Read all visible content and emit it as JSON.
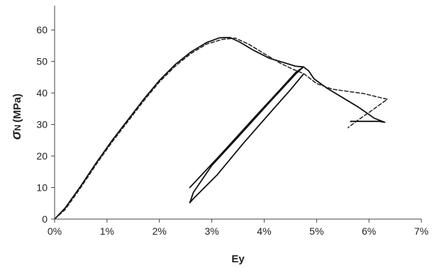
{
  "chart_data": {
    "type": "line",
    "xlabel": "Ey",
    "ylabel": {
      "symbol": "σ",
      "subscript": "N",
      "unit": "(MPa)"
    },
    "xlim": [
      0,
      7
    ],
    "ylim": [
      0,
      65
    ],
    "x_ticks": [
      0,
      1,
      2,
      3,
      4,
      5,
      6,
      7
    ],
    "x_tick_labels": [
      "0%",
      "1%",
      "2%",
      "3%",
      "4%",
      "5%",
      "6%",
      "7%"
    ],
    "y_ticks": [
      0,
      10,
      20,
      30,
      40,
      50,
      60
    ],
    "y_tick_labels": [
      "0",
      "10",
      "20",
      "30",
      "40",
      "50",
      "60"
    ],
    "grid": false,
    "legend": false,
    "series": [
      {
        "style": "solid",
        "color": "#111111",
        "points": [
          [
            0,
            0
          ],
          [
            0.2,
            3.5
          ],
          [
            0.5,
            10.5
          ],
          [
            0.8,
            18
          ],
          [
            1.1,
            25
          ],
          [
            1.4,
            31.5
          ],
          [
            1.7,
            38
          ],
          [
            2.0,
            44
          ],
          [
            2.3,
            49
          ],
          [
            2.6,
            53
          ],
          [
            2.9,
            56
          ],
          [
            3.15,
            57.5
          ],
          [
            3.35,
            57.6
          ],
          [
            3.55,
            56
          ],
          [
            3.8,
            53.5
          ],
          [
            4.1,
            51
          ],
          [
            4.4,
            49.5
          ],
          [
            4.6,
            48.5
          ],
          [
            4.75,
            48.3
          ],
          [
            4.85,
            47
          ],
          [
            4.95,
            44.5
          ],
          [
            5.2,
            41.5
          ],
          [
            5.5,
            38.5
          ],
          [
            5.8,
            35.5
          ],
          [
            6.1,
            32
          ],
          [
            6.3,
            30.7
          ],
          [
            6.2,
            31
          ],
          [
            5.65,
            31
          ],
          [
            5.65,
            30.9
          ]
        ]
      },
      {
        "style": "solid",
        "color": "#111111",
        "points": [
          [
            2.58,
            10
          ],
          [
            3.2,
            21
          ],
          [
            3.8,
            32
          ],
          [
            4.3,
            41
          ],
          [
            4.6,
            46.5
          ],
          [
            4.75,
            48.3
          ],
          [
            4.6,
            46
          ],
          [
            4.1,
            37
          ],
          [
            3.5,
            26
          ],
          [
            3.0,
            17
          ],
          [
            2.65,
            8.5
          ],
          [
            2.58,
            5.2
          ],
          [
            2.65,
            6.5
          ],
          [
            3.1,
            14
          ],
          [
            3.6,
            24
          ],
          [
            4.1,
            33.5
          ],
          [
            4.5,
            41
          ],
          [
            4.75,
            46
          ]
        ]
      },
      {
        "style": "dashed",
        "color": "#222222",
        "points": [
          [
            0,
            0
          ],
          [
            0.2,
            3
          ],
          [
            0.5,
            10
          ],
          [
            0.8,
            17.5
          ],
          [
            1.1,
            24.5
          ],
          [
            1.4,
            31
          ],
          [
            1.7,
            37.5
          ],
          [
            2.0,
            43.5
          ],
          [
            2.3,
            48.5
          ],
          [
            2.6,
            52.5
          ],
          [
            2.9,
            55.5
          ],
          [
            3.2,
            57
          ],
          [
            3.45,
            57.4
          ],
          [
            3.7,
            55.5
          ],
          [
            4.0,
            52.5
          ],
          [
            4.3,
            49.5
          ],
          [
            4.55,
            47.5
          ],
          [
            4.75,
            46.2
          ],
          [
            5.0,
            43
          ],
          [
            5.3,
            41.2
          ],
          [
            5.6,
            40.5
          ],
          [
            5.9,
            39.8
          ],
          [
            6.15,
            38.8
          ],
          [
            6.35,
            38
          ],
          [
            6.1,
            35
          ],
          [
            5.8,
            31.5
          ],
          [
            5.6,
            29
          ]
        ]
      }
    ]
  }
}
